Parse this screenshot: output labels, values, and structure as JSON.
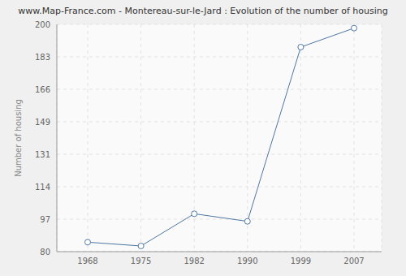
{
  "chart_data": {
    "type": "line",
    "title": "www.Map-France.com - Montereau-sur-le-Jard : Evolution of the number of housing",
    "y_label": "Number of housing",
    "categories": [
      "1968",
      "1975",
      "1982",
      "1990",
      "1999",
      "2007"
    ],
    "values": [
      85,
      83,
      100,
      96,
      188,
      198
    ],
    "color": "#4f77a3",
    "marker": "circle",
    "ylim": [
      80,
      200
    ],
    "yticks": [
      80,
      {
        "value": 97.14,
        "label": "97"
      },
      {
        "value": 114.29,
        "label": "114"
      },
      {
        "value": 131.43,
        "label": "131"
      },
      {
        "value": 148.57,
        "label": "149"
      },
      {
        "value": 165.71,
        "label": "166"
      },
      {
        "value": 182.86,
        "label": "183"
      },
      200
    ],
    "grid": true
  }
}
